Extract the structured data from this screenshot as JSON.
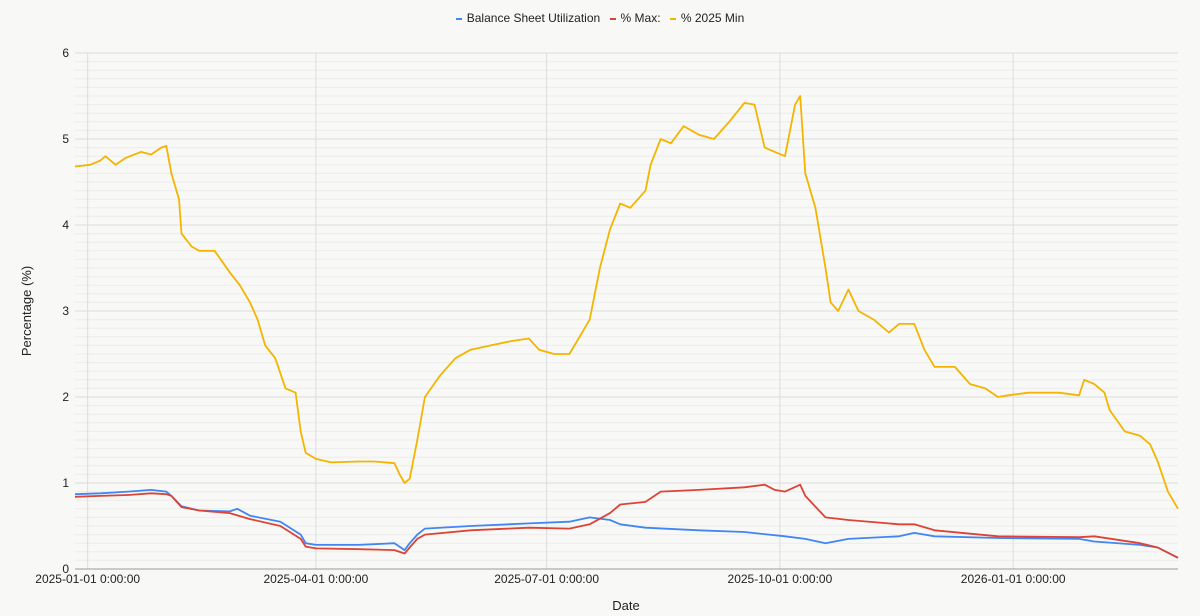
{
  "chart_data": {
    "type": "line",
    "title": "",
    "xlabel": "Date",
    "ylabel": "Percentage (%)",
    "ylim": [
      0,
      6
    ],
    "xlim": [
      "2024-12-27",
      "2026-03-07"
    ],
    "yticks": [
      "0",
      "1",
      "2",
      "3",
      "4",
      "5",
      "6"
    ],
    "xticks": [
      {
        "date": "2025-01-01",
        "label": "2025-01-01 0:00:00"
      },
      {
        "date": "2025-04-01",
        "label": "2025-04-01 0:00:00"
      },
      {
        "date": "2025-07-01",
        "label": "2025-07-01 0:00:00"
      },
      {
        "date": "2025-10-01",
        "label": "2025-10-01 0:00:00"
      },
      {
        "date": "2026-01-01",
        "label": "2026-01-01 0:00:00"
      }
    ],
    "grid": true,
    "legend_position": "top",
    "series": [
      {
        "name": "Balance Sheet Utilization",
        "color": "#4285f4",
        "points": [
          [
            "2024-12-27",
            0.87
          ],
          [
            "2025-01-06",
            0.88
          ],
          [
            "2025-01-17",
            0.9
          ],
          [
            "2025-01-26",
            0.92
          ],
          [
            "2025-02-01",
            0.9
          ],
          [
            "2025-02-03",
            0.85
          ],
          [
            "2025-02-07",
            0.73
          ],
          [
            "2025-02-14",
            0.68
          ],
          [
            "2025-02-26",
            0.67
          ],
          [
            "2025-03-01",
            0.7
          ],
          [
            "2025-03-06",
            0.62
          ],
          [
            "2025-03-18",
            0.55
          ],
          [
            "2025-03-26",
            0.4
          ],
          [
            "2025-03-28",
            0.3
          ],
          [
            "2025-04-01",
            0.28
          ],
          [
            "2025-04-18",
            0.28
          ],
          [
            "2025-05-02",
            0.3
          ],
          [
            "2025-05-06",
            0.22
          ],
          [
            "2025-05-08",
            0.3
          ],
          [
            "2025-05-11",
            0.4
          ],
          [
            "2025-05-14",
            0.47
          ],
          [
            "2025-06-01",
            0.5
          ],
          [
            "2025-06-24",
            0.53
          ],
          [
            "2025-07-10",
            0.55
          ],
          [
            "2025-07-18",
            0.6
          ],
          [
            "2025-07-26",
            0.57
          ],
          [
            "2025-07-30",
            0.52
          ],
          [
            "2025-08-09",
            0.48
          ],
          [
            "2025-08-30",
            0.45
          ],
          [
            "2025-09-17",
            0.43
          ],
          [
            "2025-10-03",
            0.38
          ],
          [
            "2025-10-11",
            0.35
          ],
          [
            "2025-10-19",
            0.3
          ],
          [
            "2025-10-28",
            0.35
          ],
          [
            "2025-11-17",
            0.38
          ],
          [
            "2025-11-23",
            0.42
          ],
          [
            "2025-12-01",
            0.38
          ],
          [
            "2025-12-26",
            0.36
          ],
          [
            "2026-01-27",
            0.35
          ],
          [
            "2026-02-02",
            0.32
          ],
          [
            "2026-02-20",
            0.28
          ],
          [
            "2026-02-27",
            0.25
          ],
          [
            "2026-03-07",
            0.13
          ]
        ]
      },
      {
        "name": "% Max:",
        "color": "#db4437",
        "points": [
          [
            "2024-12-27",
            0.84
          ],
          [
            "2025-01-06",
            0.85
          ],
          [
            "2025-01-17",
            0.86
          ],
          [
            "2025-01-26",
            0.88
          ],
          [
            "2025-02-01",
            0.87
          ],
          [
            "2025-02-03",
            0.85
          ],
          [
            "2025-02-07",
            0.72
          ],
          [
            "2025-02-14",
            0.68
          ],
          [
            "2025-02-26",
            0.65
          ],
          [
            "2025-03-06",
            0.58
          ],
          [
            "2025-03-18",
            0.5
          ],
          [
            "2025-03-26",
            0.35
          ],
          [
            "2025-03-28",
            0.26
          ],
          [
            "2025-04-01",
            0.24
          ],
          [
            "2025-04-18",
            0.23
          ],
          [
            "2025-05-02",
            0.22
          ],
          [
            "2025-05-06",
            0.18
          ],
          [
            "2025-05-08",
            0.25
          ],
          [
            "2025-05-11",
            0.35
          ],
          [
            "2025-05-14",
            0.4
          ],
          [
            "2025-06-01",
            0.45
          ],
          [
            "2025-06-24",
            0.48
          ],
          [
            "2025-07-10",
            0.47
          ],
          [
            "2025-07-18",
            0.52
          ],
          [
            "2025-07-26",
            0.65
          ],
          [
            "2025-07-30",
            0.75
          ],
          [
            "2025-08-09",
            0.78
          ],
          [
            "2025-08-15",
            0.9
          ],
          [
            "2025-08-30",
            0.92
          ],
          [
            "2025-09-17",
            0.95
          ],
          [
            "2025-09-25",
            0.98
          ],
          [
            "2025-09-29",
            0.92
          ],
          [
            "2025-10-03",
            0.9
          ],
          [
            "2025-10-09",
            0.98
          ],
          [
            "2025-10-11",
            0.85
          ],
          [
            "2025-10-19",
            0.6
          ],
          [
            "2025-10-28",
            0.57
          ],
          [
            "2025-11-17",
            0.52
          ],
          [
            "2025-11-23",
            0.52
          ],
          [
            "2025-12-01",
            0.45
          ],
          [
            "2025-12-26",
            0.38
          ],
          [
            "2026-01-27",
            0.37
          ],
          [
            "2026-02-02",
            0.38
          ],
          [
            "2026-02-20",
            0.3
          ],
          [
            "2026-02-27",
            0.25
          ],
          [
            "2026-03-07",
            0.13
          ]
        ]
      },
      {
        "name": "% 2025 Min",
        "color": "#f4b400",
        "points": [
          [
            "2024-12-27",
            4.68
          ],
          [
            "2025-01-02",
            4.7
          ],
          [
            "2025-01-06",
            4.75
          ],
          [
            "2025-01-08",
            4.8
          ],
          [
            "2025-01-12",
            4.7
          ],
          [
            "2025-01-16",
            4.78
          ],
          [
            "2025-01-22",
            4.85
          ],
          [
            "2025-01-26",
            4.82
          ],
          [
            "2025-01-30",
            4.9
          ],
          [
            "2025-02-01",
            4.92
          ],
          [
            "2025-02-03",
            4.6
          ],
          [
            "2025-02-06",
            4.3
          ],
          [
            "2025-02-07",
            3.9
          ],
          [
            "2025-02-11",
            3.75
          ],
          [
            "2025-02-14",
            3.7
          ],
          [
            "2025-02-20",
            3.7
          ],
          [
            "2025-02-22",
            3.62
          ],
          [
            "2025-02-26",
            3.45
          ],
          [
            "2025-03-02",
            3.3
          ],
          [
            "2025-03-06",
            3.1
          ],
          [
            "2025-03-09",
            2.9
          ],
          [
            "2025-03-12",
            2.6
          ],
          [
            "2025-03-16",
            2.45
          ],
          [
            "2025-03-20",
            2.1
          ],
          [
            "2025-03-24",
            2.05
          ],
          [
            "2025-03-26",
            1.6
          ],
          [
            "2025-03-28",
            1.35
          ],
          [
            "2025-04-01",
            1.28
          ],
          [
            "2025-04-07",
            1.24
          ],
          [
            "2025-04-18",
            1.25
          ],
          [
            "2025-04-24",
            1.25
          ],
          [
            "2025-05-02",
            1.23
          ],
          [
            "2025-05-04",
            1.1
          ],
          [
            "2025-05-06",
            1.0
          ],
          [
            "2025-05-08",
            1.05
          ],
          [
            "2025-05-11",
            1.5
          ],
          [
            "2025-05-14",
            2.0
          ],
          [
            "2025-05-20",
            2.25
          ],
          [
            "2025-05-26",
            2.45
          ],
          [
            "2025-06-01",
            2.55
          ],
          [
            "2025-06-09",
            2.6
          ],
          [
            "2025-06-17",
            2.65
          ],
          [
            "2025-06-24",
            2.68
          ],
          [
            "2025-06-28",
            2.55
          ],
          [
            "2025-07-04",
            2.5
          ],
          [
            "2025-07-10",
            2.5
          ],
          [
            "2025-07-14",
            2.7
          ],
          [
            "2025-07-18",
            2.9
          ],
          [
            "2025-07-22",
            3.5
          ],
          [
            "2025-07-26",
            3.95
          ],
          [
            "2025-07-30",
            4.25
          ],
          [
            "2025-08-03",
            4.2
          ],
          [
            "2025-08-09",
            4.4
          ],
          [
            "2025-08-11",
            4.7
          ],
          [
            "2025-08-15",
            5.0
          ],
          [
            "2025-08-19",
            4.95
          ],
          [
            "2025-08-24",
            5.15
          ],
          [
            "2025-08-30",
            5.05
          ],
          [
            "2025-09-05",
            5.0
          ],
          [
            "2025-09-11",
            5.2
          ],
          [
            "2025-09-17",
            5.42
          ],
          [
            "2025-09-21",
            5.4
          ],
          [
            "2025-09-25",
            4.9
          ],
          [
            "2025-09-29",
            4.85
          ],
          [
            "2025-10-03",
            4.8
          ],
          [
            "2025-10-07",
            5.4
          ],
          [
            "2025-10-09",
            5.5
          ],
          [
            "2025-10-11",
            4.6
          ],
          [
            "2025-10-15",
            4.2
          ],
          [
            "2025-10-19",
            3.5
          ],
          [
            "2025-10-21",
            3.1
          ],
          [
            "2025-10-24",
            3.0
          ],
          [
            "2025-10-28",
            3.25
          ],
          [
            "2025-11-01",
            3.0
          ],
          [
            "2025-11-07",
            2.9
          ],
          [
            "2025-11-13",
            2.75
          ],
          [
            "2025-11-17",
            2.85
          ],
          [
            "2025-11-23",
            2.85
          ],
          [
            "2025-11-27",
            2.55
          ],
          [
            "2025-12-01",
            2.35
          ],
          [
            "2025-12-09",
            2.35
          ],
          [
            "2025-12-15",
            2.15
          ],
          [
            "2025-12-21",
            2.1
          ],
          [
            "2025-12-26",
            2.0
          ],
          [
            "2025-12-30",
            2.02
          ],
          [
            "2026-01-07",
            2.05
          ],
          [
            "2026-01-19",
            2.05
          ],
          [
            "2026-01-27",
            2.02
          ],
          [
            "2026-01-29",
            2.2
          ],
          [
            "2026-02-02",
            2.15
          ],
          [
            "2026-02-06",
            2.05
          ],
          [
            "2026-02-08",
            1.85
          ],
          [
            "2026-02-14",
            1.6
          ],
          [
            "2026-02-20",
            1.55
          ],
          [
            "2026-02-24",
            1.45
          ],
          [
            "2026-02-27",
            1.25
          ],
          [
            "2026-03-03",
            0.9
          ],
          [
            "2026-03-07",
            0.7
          ]
        ]
      }
    ]
  }
}
